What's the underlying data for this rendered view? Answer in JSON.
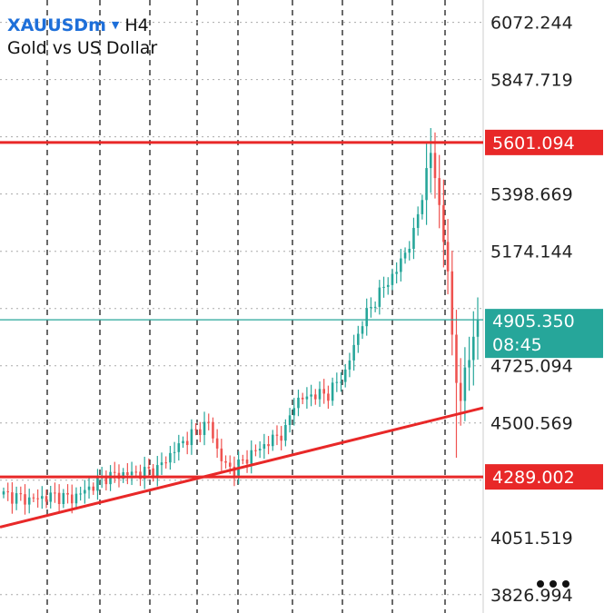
{
  "header": {
    "symbol": "XAUUSDm",
    "timeframe": "H4",
    "description": "Gold vs US Dollar"
  },
  "more_icon": "more-dots-icon",
  "colors": {
    "bull": "#26a69a",
    "bear": "#ef5350",
    "level_line": "#e82828",
    "current_line": "#26a69a",
    "grid": "#1a1a1a",
    "axis_text": "#222222"
  },
  "chart_data": {
    "type": "candlestick",
    "title": "Gold vs US Dollar",
    "symbol": "XAUUSDm",
    "timeframe": "H4",
    "y_tick_labels": [
      "6072.244",
      "5847.719",
      "5398.669",
      "5174.144",
      "4725.094",
      "4500.569",
      "4051.519",
      "3826.994"
    ],
    "y_ticks": [
      6072.244,
      5847.719,
      5623.194,
      5398.669,
      5174.144,
      4949.619,
      4725.094,
      4500.569,
      4276.044,
      4051.519,
      3826.994
    ],
    "ylim": [
      3755,
      6160
    ],
    "grid": true,
    "horizontal_levels": [
      5601.094,
      4289.002
    ],
    "current_price": {
      "price": 4905.35,
      "label": "4905.350",
      "countdown": "08:45"
    },
    "trendline": [
      {
        "x": 0,
        "y": 4092
      },
      {
        "x": 112,
        "y": 4560
      }
    ],
    "n_candles": 112,
    "close_path": [
      [
        0,
        4220
      ],
      [
        6,
        4200
      ],
      [
        12,
        4215
      ],
      [
        16,
        4205
      ],
      [
        20,
        4245
      ],
      [
        24,
        4290
      ],
      [
        28,
        4300
      ],
      [
        32,
        4305
      ],
      [
        36,
        4320
      ],
      [
        40,
        4395
      ],
      [
        44,
        4455
      ],
      [
        46,
        4480
      ],
      [
        48,
        4500
      ],
      [
        50,
        4395
      ],
      [
        52,
        4330
      ],
      [
        54,
        4320
      ],
      [
        58,
        4380
      ],
      [
        62,
        4425
      ],
      [
        66,
        4470
      ],
      [
        68,
        4580
      ],
      [
        72,
        4610
      ],
      [
        76,
        4615
      ],
      [
        80,
        4700
      ],
      [
        84,
        4900
      ],
      [
        88,
        5010
      ],
      [
        92,
        5100
      ],
      [
        96,
        5240
      ],
      [
        99,
        5480
      ],
      [
        100,
        5560
      ],
      [
        101,
        5470
      ],
      [
        102,
        5350
      ],
      [
        103,
        5220
      ],
      [
        104,
        5080
      ],
      [
        105,
        4850
      ],
      [
        106,
        4680
      ],
      [
        107,
        4560
      ],
      [
        108,
        4720
      ],
      [
        110,
        4820
      ],
      [
        111,
        4905
      ]
    ]
  },
  "price_labels": {
    "top_level": "5601.094",
    "bottom_level": "4289.002",
    "current": "4905.350",
    "countdown": "08:45"
  }
}
